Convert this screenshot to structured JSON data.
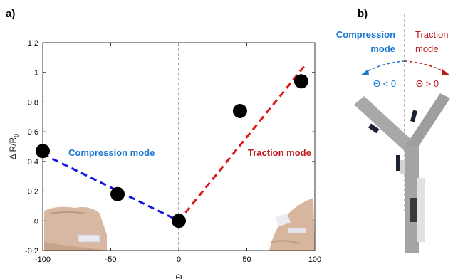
{
  "panel_a_label": "a)",
  "panel_b_label": "b)",
  "chart_data": {
    "type": "scatter",
    "xlabel": "Θ",
    "ylabel": "Δ R/R0",
    "ylabel_main": "Δ R/R",
    "ylabel_sub": "0",
    "xlim": [
      -100,
      100
    ],
    "ylim": [
      -0.2,
      1.2
    ],
    "xticks": [
      -100,
      -50,
      0,
      50,
      100
    ],
    "yticks": [
      -0.2,
      0,
      0.2,
      0.4,
      0.6,
      0.8,
      1,
      1.2
    ],
    "xtick_labels": [
      "-100",
      "-50",
      "0",
      "50",
      "100"
    ],
    "ytick_labels": [
      "-0.2",
      "0",
      "0.2",
      "0.4",
      "0.6",
      "0.8",
      "1",
      "1.2"
    ],
    "grid": false,
    "points": [
      {
        "x": -100,
        "y": 0.47
      },
      {
        "x": -45,
        "y": 0.18
      },
      {
        "x": 0,
        "y": 0.0
      },
      {
        "x": 45,
        "y": 0.74
      },
      {
        "x": 90,
        "y": 0.94
      }
    ],
    "fits": [
      {
        "x": [
          -100,
          0
        ],
        "y": [
          0.45,
          0.0
        ],
        "color": "#1515e0"
      },
      {
        "x": [
          0,
          93
        ],
        "y": [
          0.0,
          1.05
        ],
        "color": "#e01515"
      }
    ],
    "annotations": [
      {
        "text": "Compression mode",
        "color": "#1a77d2"
      },
      {
        "text": "Traction mode",
        "color": "#c0191c"
      }
    ]
  },
  "diagram": {
    "compression_line1": "Compression",
    "compression_line2": "mode",
    "traction_line1": "Traction",
    "traction_line2": "mode",
    "theta_neg": "Θ < 0",
    "theta_pos": "Θ > 0",
    "compression_color": "#1a77d2",
    "traction_color": "#c0191c"
  }
}
